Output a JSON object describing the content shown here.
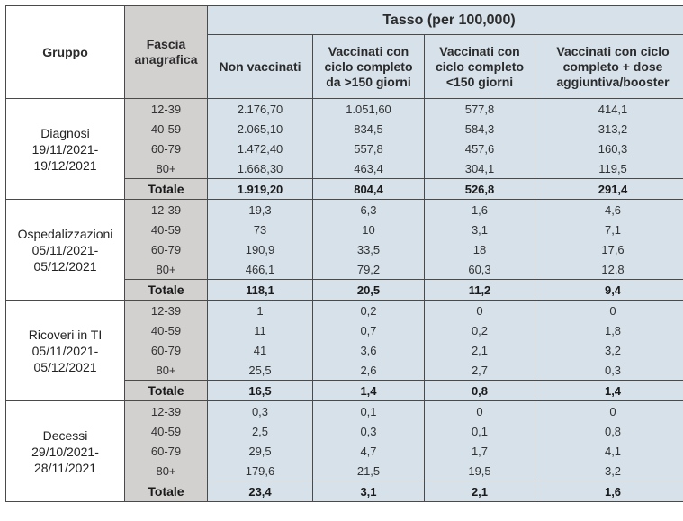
{
  "header": {
    "gruppo": "Gruppo",
    "fascia_line1": "Fascia",
    "fascia_line2": "anagrafica",
    "tasso": "Tasso (per 100,000)",
    "columns": [
      [
        "Non vaccinati"
      ],
      [
        "Vaccinati con",
        "ciclo completo",
        "da >150 giorni"
      ],
      [
        "Vaccinati con",
        "ciclo completo",
        "<150 giorni"
      ],
      [
        "Vaccinati con ciclo",
        "completo + dose",
        "aggiuntiva/booster"
      ]
    ]
  },
  "groups": [
    {
      "label": [
        "Diagnosi",
        "19/11/2021-",
        "19/12/2021"
      ],
      "rows": [
        {
          "age": "12-39",
          "values": [
            "2.176,70",
            "1.051,60",
            "577,8",
            "414,1"
          ]
        },
        {
          "age": "40-59",
          "values": [
            "2.065,10",
            "834,5",
            "584,3",
            "313,2"
          ]
        },
        {
          "age": "60-79",
          "values": [
            "1.472,40",
            "557,8",
            "457,6",
            "160,3"
          ]
        },
        {
          "age": "80+",
          "values": [
            "1.668,30",
            "463,4",
            "304,1",
            "119,5"
          ]
        }
      ],
      "total": {
        "label": "Totale",
        "values": [
          "1.919,20",
          "804,4",
          "526,8",
          "291,4"
        ]
      }
    },
    {
      "label": [
        "Ospedalizzazioni",
        "05/11/2021-",
        "05/12/2021"
      ],
      "rows": [
        {
          "age": "12-39",
          "values": [
            "19,3",
            "6,3",
            "1,6",
            "4,6"
          ]
        },
        {
          "age": "40-59",
          "values": [
            "73",
            "10",
            "3,1",
            "7,1"
          ]
        },
        {
          "age": "60-79",
          "values": [
            "190,9",
            "33,5",
            "18",
            "17,6"
          ]
        },
        {
          "age": "80+",
          "values": [
            "466,1",
            "79,2",
            "60,3",
            "12,8"
          ]
        }
      ],
      "total": {
        "label": "Totale",
        "values": [
          "118,1",
          "20,5",
          "11,2",
          "9,4"
        ]
      }
    },
    {
      "label": [
        "Ricoveri in TI",
        "05/11/2021-",
        "05/12/2021"
      ],
      "rows": [
        {
          "age": "12-39",
          "values": [
            "1",
            "0,2",
            "0",
            "0"
          ]
        },
        {
          "age": "40-59",
          "values": [
            "11",
            "0,7",
            "0,2",
            "1,8"
          ]
        },
        {
          "age": "60-79",
          "values": [
            "41",
            "3,6",
            "2,1",
            "3,2"
          ]
        },
        {
          "age": "80+",
          "values": [
            "25,5",
            "2,6",
            "2,7",
            "0,3"
          ]
        }
      ],
      "total": {
        "label": "Totale",
        "values": [
          "16,5",
          "1,4",
          "0,8",
          "1,4"
        ]
      }
    },
    {
      "label": [
        "Decessi",
        "29/10/2021-",
        "28/11/2021"
      ],
      "rows": [
        {
          "age": "12-39",
          "values": [
            "0,3",
            "0,1",
            "0",
            "0"
          ]
        },
        {
          "age": "40-59",
          "values": [
            "2,5",
            "0,3",
            "0,1",
            "0,8"
          ]
        },
        {
          "age": "60-79",
          "values": [
            "29,5",
            "4,7",
            "1,7",
            "4,1"
          ]
        },
        {
          "age": "80+",
          "values": [
            "179,6",
            "21,5",
            "19,5",
            "3,2"
          ]
        }
      ],
      "total": {
        "label": "Totale",
        "values": [
          "23,4",
          "3,1",
          "2,1",
          "1,6"
        ]
      }
    }
  ]
}
